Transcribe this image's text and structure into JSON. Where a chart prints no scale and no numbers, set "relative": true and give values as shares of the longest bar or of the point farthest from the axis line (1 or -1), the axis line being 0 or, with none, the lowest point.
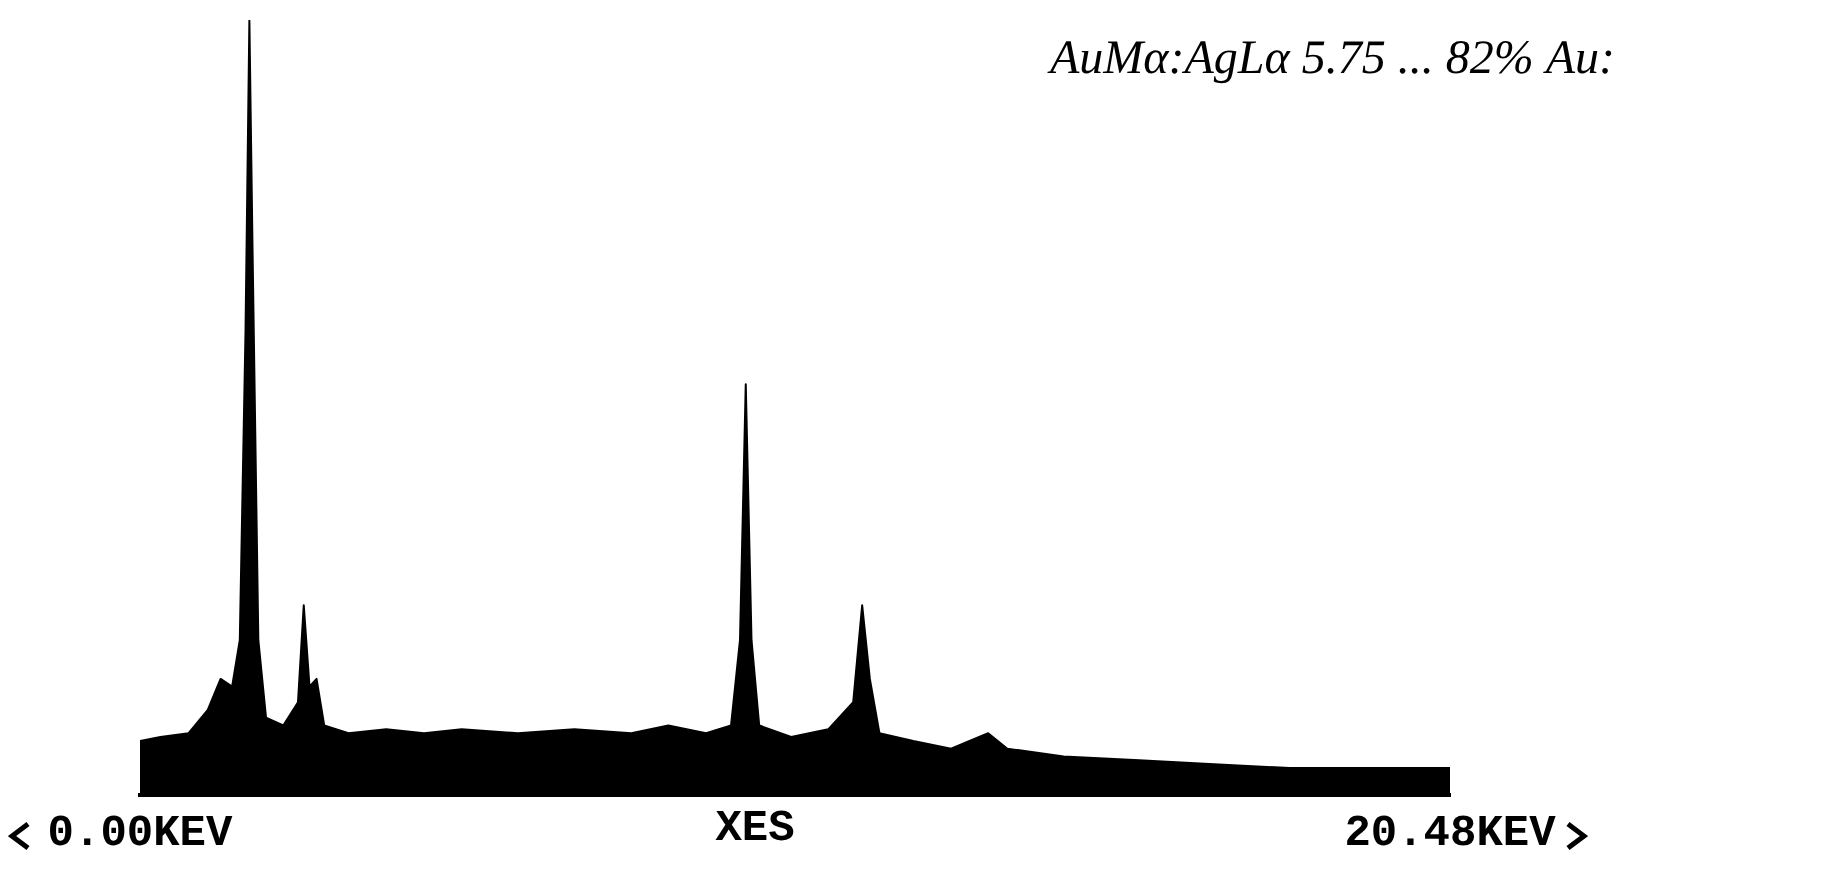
{
  "chart_data": {
    "type": "area",
    "relative": true,
    "grid": false,
    "legend": false,
    "marker": "none",
    "xlim": [
      0,
      20.48
    ],
    "xticks": [
      {
        "value": 0,
        "label": "0.00KEV"
      },
      {
        "value": 20.48,
        "label": "20.48KEV"
      }
    ],
    "annotations": [
      "AuMα:AgLα 5.75 ... 82% Au:",
      "XES"
    ],
    "series": [
      {
        "color": "#000000",
        "x": [
          0,
          0.32,
          0.76,
          1.06,
          1.26,
          1.44,
          1.56,
          1.65,
          1.71,
          1.76,
          1.85,
          1.97,
          2.24,
          2.47,
          2.56,
          2.65,
          2.76,
          2.88,
          3.26,
          3.85,
          4.44,
          5.03,
          5.91,
          6.79,
          7.68,
          8.26,
          8.85,
          9.24,
          9.38,
          9.47,
          9.56,
          9.68,
          10.18,
          10.76,
          11.15,
          11.29,
          11.41,
          11.56,
          12.09,
          12.68,
          13.26,
          13.56,
          14.44,
          15.62,
          16.79,
          17.97,
          19.15,
          20.48
        ],
        "values": [
          0.07,
          0.075,
          0.08,
          0.11,
          0.15,
          0.14,
          0.2,
          0.6,
          1.0,
          0.7,
          0.2,
          0.1,
          0.09,
          0.12,
          0.245,
          0.14,
          0.15,
          0.09,
          0.08,
          0.085,
          0.08,
          0.085,
          0.08,
          0.085,
          0.08,
          0.09,
          0.08,
          0.09,
          0.2,
          0.53,
          0.2,
          0.09,
          0.075,
          0.085,
          0.12,
          0.245,
          0.15,
          0.08,
          0.07,
          0.06,
          0.08,
          0.06,
          0.05,
          0.045,
          0.04,
          0.035,
          0.035,
          0.035
        ]
      }
    ]
  }
}
